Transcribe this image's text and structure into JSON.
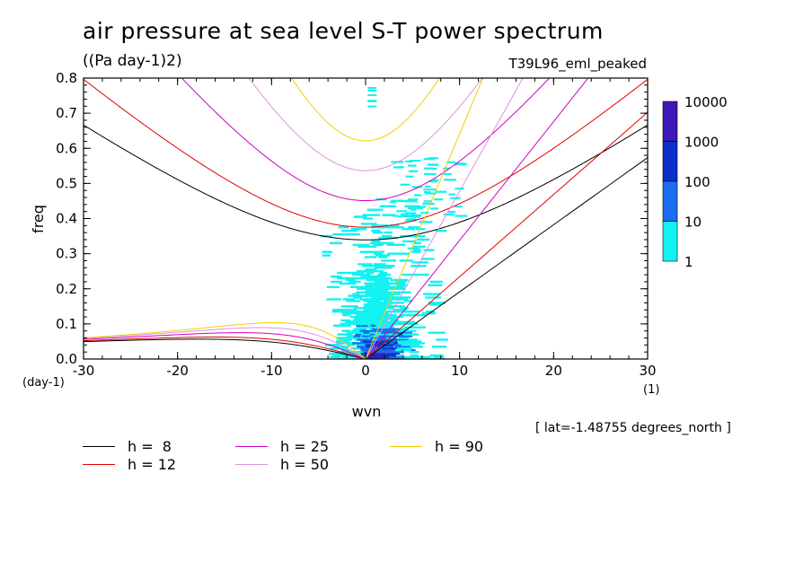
{
  "header": {
    "title": "air pressure at sea level S-T power spectrum",
    "units": "((Pa day-1)2)",
    "run_name": "T39L96_eml_peaked",
    "lat_note": "[ lat=-1.48755 degrees_north ]"
  },
  "chart_data": {
    "type": "heatmap",
    "title": "air pressure at sea level S-T power spectrum",
    "xlabel": "wvn",
    "ylabel": "freq",
    "x_unit": "(1)",
    "y_unit": "(day-1)",
    "xlim": [
      -30,
      30
    ],
    "ylim": [
      0,
      0.8
    ],
    "x_ticks": [
      -30,
      -20,
      -10,
      0,
      10,
      20,
      30
    ],
    "x_tick_labels": [
      "-30",
      "-20",
      "-10",
      "0",
      "10",
      "20",
      "30"
    ],
    "y_ticks": [
      0,
      0.1,
      0.2,
      0.3,
      0.4,
      0.5,
      0.6,
      0.7,
      0.8
    ],
    "y_tick_labels": [
      "0.0",
      "0.1",
      "0.2",
      "0.3",
      "0.4",
      "0.5",
      "0.6",
      "0.7",
      "0.8"
    ],
    "colorbar": {
      "labels": [
        "10000",
        "1000",
        "100",
        "10",
        "1"
      ],
      "colors": [
        "#3f19b8",
        "#0c31c9",
        "#1a6df0",
        "#13f2f0"
      ]
    },
    "dispersion_curves": [
      {
        "label": "h =  8",
        "h": 8,
        "color": "#000000"
      },
      {
        "label": "h = 12",
        "h": 12,
        "color": "#e00000"
      },
      {
        "label": "h = 25",
        "h": 25,
        "color": "#d000c0"
      },
      {
        "label": "h = 50",
        "h": 50,
        "color": "#e090e0"
      },
      {
        "label": "h = 90",
        "h": 90,
        "color": "#f0d000"
      }
    ]
  }
}
